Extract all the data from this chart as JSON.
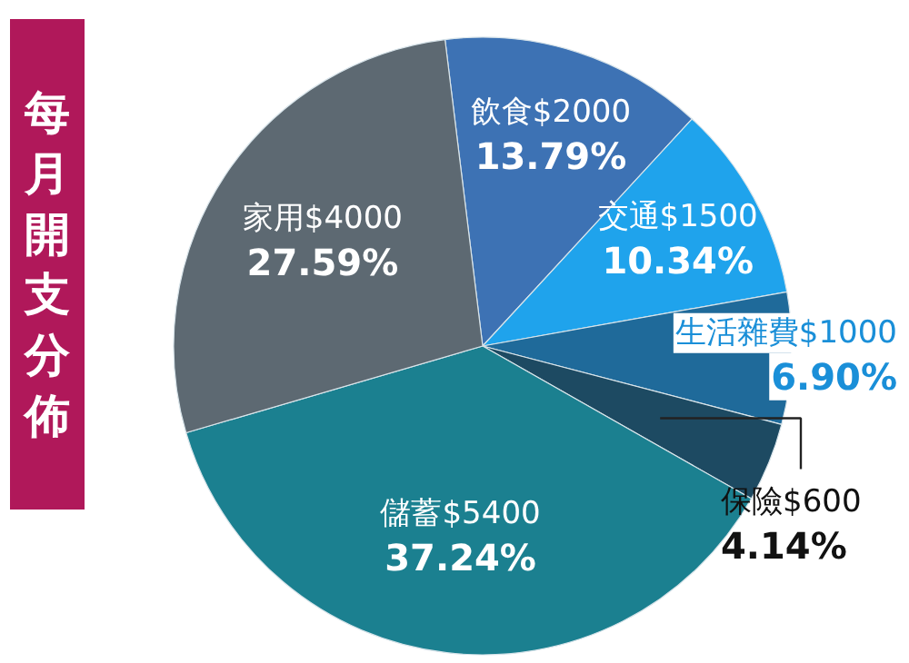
{
  "chart_data": {
    "type": "pie",
    "title": "每月開支分佈",
    "categories": [
      "飲食",
      "交通",
      "生活雜費",
      "保險",
      "儲蓄",
      "家用"
    ],
    "values": [
      2000,
      1500,
      1000,
      600,
      5400,
      4000
    ],
    "colors": [
      "#3d72b4",
      "#1fa3ec",
      "#1f6a9a",
      "#1d4a62",
      "#1b8090",
      "#5d6972"
    ],
    "value_labels": [
      "$2000\n13.79%",
      "$1500\n10.34%",
      "$1000\n6.90%",
      "$600\n4.14%",
      "$5400\n37.24%",
      "$4000\n27.59%"
    ]
  }
}
